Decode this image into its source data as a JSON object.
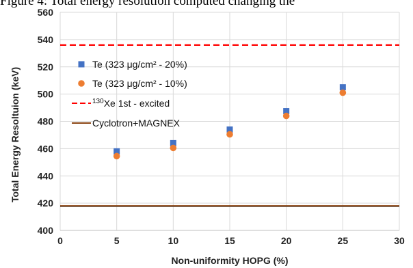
{
  "caption": "Figure 4: Total energy resolution computed changing the",
  "chart_data": {
    "type": "scatter",
    "xlabel": "Non-uniformity HOPG (%)",
    "ylabel": "Total Energy Resoltuion (keV)",
    "xlim": [
      0,
      30
    ],
    "ylim": [
      400,
      560
    ],
    "xticks": [
      0,
      5,
      10,
      15,
      20,
      25,
      30
    ],
    "yticks": [
      400,
      420,
      440,
      460,
      480,
      500,
      520,
      540,
      560
    ],
    "grid": true,
    "legend_position": "upper-left",
    "series": [
      {
        "name": "Te (323 μg/cm² - 20%)",
        "marker": "square",
        "color": "#4472C4",
        "x": [
          5,
          10,
          15,
          20,
          25
        ],
        "y": [
          458,
          464,
          474,
          487.5,
          505
        ]
      },
      {
        "name": "Te (323 μg/cm² - 10%)",
        "marker": "circle",
        "color": "#ED7D31",
        "x": [
          5,
          10,
          15,
          20,
          25
        ],
        "y": [
          454.5,
          460.5,
          470.5,
          484,
          501
        ]
      }
    ],
    "reference_lines": [
      {
        "name_sup": "130",
        "name_rest": "Xe 1st - excited",
        "style": "dashed",
        "color": "#FF0000",
        "y": 536
      },
      {
        "name": "Cyclotron+MAGNEX",
        "style": "solid",
        "color": "#8B4513",
        "y": 418
      }
    ]
  }
}
